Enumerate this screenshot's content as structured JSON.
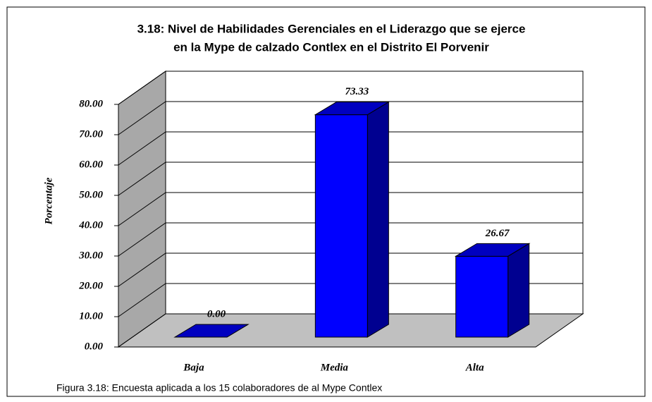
{
  "chart_data": {
    "type": "bar3d",
    "title": [
      "3.18: Nivel de Habilidades Gerenciales en el Liderazgo que se ejerce",
      "en la Mype de calzado Contlex en el Distrito El Porvenir"
    ],
    "y_label": "Porcentaje",
    "categories": [
      "Baja",
      "Media",
      "Alta"
    ],
    "values": [
      0,
      73.33,
      26.67
    ],
    "value_labels": [
      "0.00",
      "73.33",
      "26.67"
    ],
    "color": "#0000ff",
    "ylim": [
      0,
      80
    ],
    "yticks": [
      {
        "value": 0,
        "label": "0.00"
      },
      {
        "value": 10,
        "label": "10.00"
      },
      {
        "value": 20,
        "label": "20.00"
      },
      {
        "value": 30,
        "label": "30.00"
      },
      {
        "value": 40,
        "label": "40.00"
      },
      {
        "value": 50,
        "label": "50.00"
      },
      {
        "value": 60,
        "label": "60.00"
      },
      {
        "value": 70,
        "label": "70.00"
      },
      {
        "value": 80,
        "label": "80.00"
      }
    ],
    "grid": true,
    "caption": "Figura 3.18: Encuesta aplicada a los 15 colaboradores de al Mype Contlex"
  }
}
